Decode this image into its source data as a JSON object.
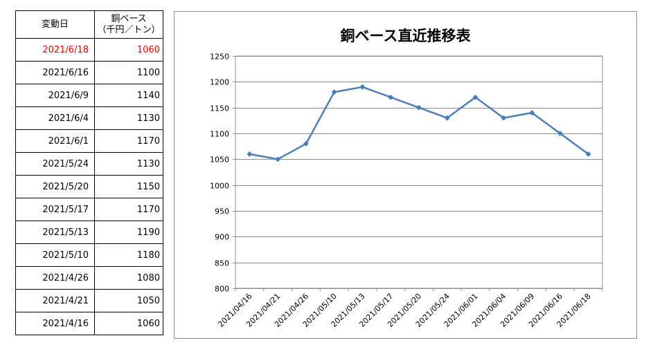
{
  "table": {
    "header_date": "変動日",
    "header_price_line1": "銅ベース",
    "header_price_line2": "（千円／トン）",
    "rows": [
      {
        "date": "2021/6/18",
        "price": "1060"
      },
      {
        "date": "2021/6/16",
        "price": "1100"
      },
      {
        "date": "2021/6/9",
        "price": "1140"
      },
      {
        "date": "2021/6/4",
        "price": "1130"
      },
      {
        "date": "2021/6/1",
        "price": "1170"
      },
      {
        "date": "2021/5/24",
        "price": "1130"
      },
      {
        "date": "2021/5/20",
        "price": "1150"
      },
      {
        "date": "2021/5/17",
        "price": "1170"
      },
      {
        "date": "2021/5/13",
        "price": "1190"
      },
      {
        "date": "2021/5/10",
        "price": "1180"
      },
      {
        "date": "2021/4/26",
        "price": "1080"
      },
      {
        "date": "2021/4/21",
        "price": "1050"
      },
      {
        "date": "2021/4/16",
        "price": "1060"
      }
    ],
    "highlight_color": "#e60000"
  },
  "chart_data": {
    "type": "line",
    "title": "銅ベース直近推移表",
    "xlabel": "",
    "ylabel": "",
    "categories": [
      "2021/04/16",
      "2021/04/21",
      "2021/04/26",
      "2021/05/10",
      "2021/05/13",
      "2021/05/17",
      "2021/05/20",
      "2021/05/24",
      "2021/06/01",
      "2021/06/04",
      "2021/06/09",
      "2021/06/16",
      "2021/06/18"
    ],
    "series": [
      {
        "values": [
          1060,
          1050,
          1080,
          1180,
          1190,
          1170,
          1150,
          1130,
          1170,
          1130,
          1140,
          1100,
          1060
        ],
        "color": "#4a7ebb",
        "marker": "diamond"
      }
    ],
    "ylim": [
      800,
      1250
    ],
    "yticks": [
      800,
      850,
      900,
      950,
      1000,
      1050,
      1100,
      1150,
      1200,
      1250
    ],
    "grid": true,
    "legend": "none"
  }
}
